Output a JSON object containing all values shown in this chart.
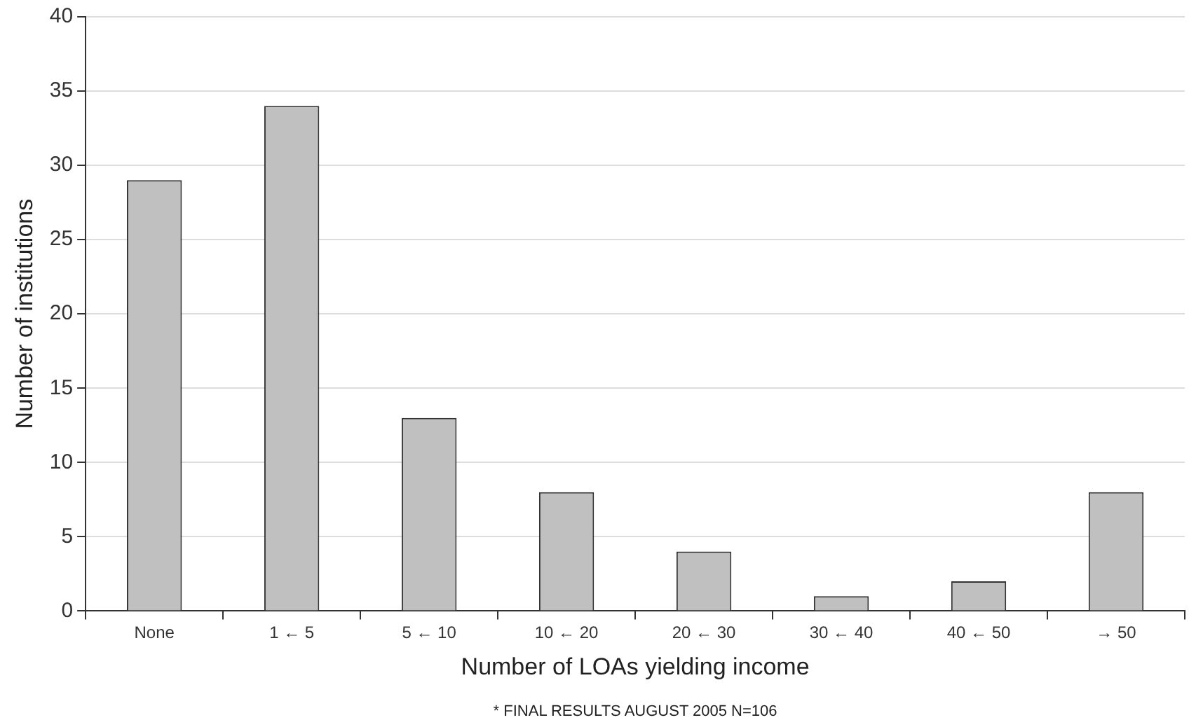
{
  "chart_data": {
    "type": "bar",
    "xlabel": "Number of LOAs yielding income",
    "ylabel": "Number of institutions",
    "categories": [
      "None",
      "1 ← 5",
      "5 ← 10",
      "10 ← 20",
      "20 ← 30",
      "30 ← 40",
      "40 ← 50",
      "→ 50"
    ],
    "values": [
      29,
      34,
      13,
      8,
      4,
      1,
      2,
      8
    ],
    "color": "#c0c0c0",
    "ylim": [
      0,
      40
    ],
    "yticks": [
      0,
      5,
      10,
      15,
      20,
      25,
      30,
      35,
      40
    ],
    "grid": "y",
    "annotations": [
      "* FINAL RESULTS AUGUST 2005 N=106"
    ]
  }
}
